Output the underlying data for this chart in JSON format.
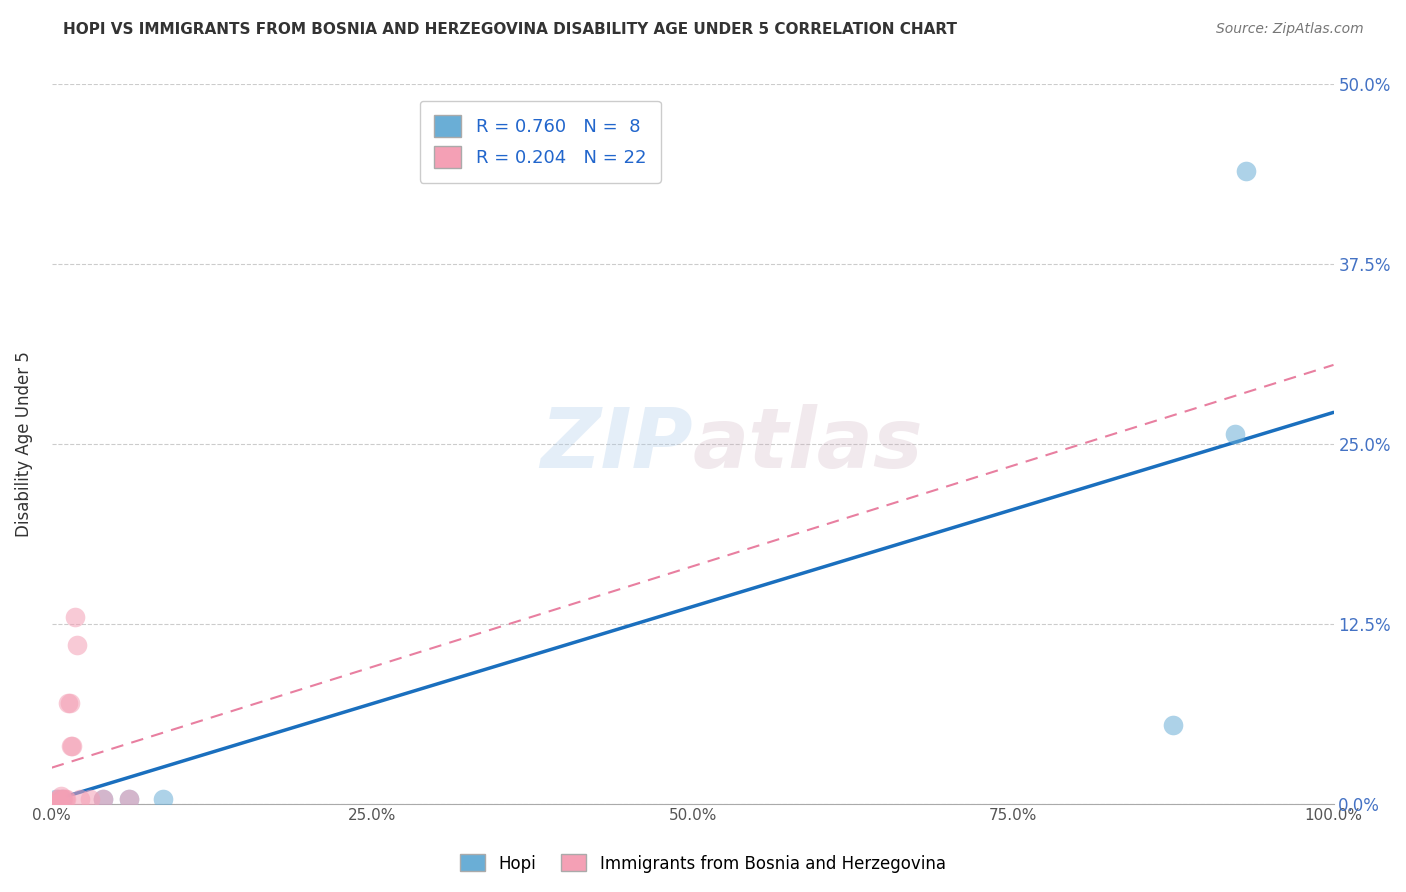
{
  "title": "HOPI VS IMMIGRANTS FROM BOSNIA AND HERZEGOVINA DISABILITY AGE UNDER 5 CORRELATION CHART",
  "source": "Source: ZipAtlas.com",
  "xlabel": "",
  "ylabel": "Disability Age Under 5",
  "xlim": [
    0.0,
    1.0
  ],
  "ylim": [
    0.0,
    0.5
  ],
  "xticks": [
    0.0,
    0.25,
    0.5,
    0.75,
    1.0
  ],
  "xtick_labels": [
    "0.0%",
    "25.0%",
    "50.0%",
    "75.0%",
    "100.0%"
  ],
  "yticks": [
    0.0,
    0.125,
    0.25,
    0.375,
    0.5
  ],
  "ytick_labels": [
    "0.0%",
    "12.5%",
    "25.0%",
    "37.5%",
    "50.0%"
  ],
  "hopi_R": 0.76,
  "hopi_N": 8,
  "bosnia_R": 0.204,
  "bosnia_N": 22,
  "hopi_color": "#6aaed6",
  "bosnia_color": "#f4a0b5",
  "hopi_line_color": "#1a6fbe",
  "bosnia_line_color": "#e87fa0",
  "watermark": "ZIPatlas",
  "hopi_line": [
    0.0,
    0.002,
    1.0,
    0.272
  ],
  "bosnia_line": [
    0.0,
    0.025,
    1.0,
    0.305
  ],
  "hopi_points": [
    [
      0.003,
      0.003
    ],
    [
      0.008,
      0.003
    ],
    [
      0.04,
      0.003
    ],
    [
      0.06,
      0.003
    ],
    [
      0.087,
      0.003
    ],
    [
      0.875,
      0.055
    ],
    [
      0.923,
      0.257
    ],
    [
      0.932,
      0.44
    ]
  ],
  "bosnia_points": [
    [
      0.0,
      0.0
    ],
    [
      0.001,
      0.0
    ],
    [
      0.002,
      0.0
    ],
    [
      0.003,
      0.0
    ],
    [
      0.004,
      0.0
    ],
    [
      0.005,
      0.003
    ],
    [
      0.006,
      0.003
    ],
    [
      0.007,
      0.005
    ],
    [
      0.008,
      0.003
    ],
    [
      0.009,
      0.003
    ],
    [
      0.01,
      0.003
    ],
    [
      0.011,
      0.003
    ],
    [
      0.013,
      0.07
    ],
    [
      0.014,
      0.07
    ],
    [
      0.015,
      0.04
    ],
    [
      0.016,
      0.04
    ],
    [
      0.018,
      0.13
    ],
    [
      0.02,
      0.11
    ],
    [
      0.022,
      0.003
    ],
    [
      0.03,
      0.003
    ],
    [
      0.04,
      0.003
    ],
    [
      0.06,
      0.003
    ]
  ]
}
